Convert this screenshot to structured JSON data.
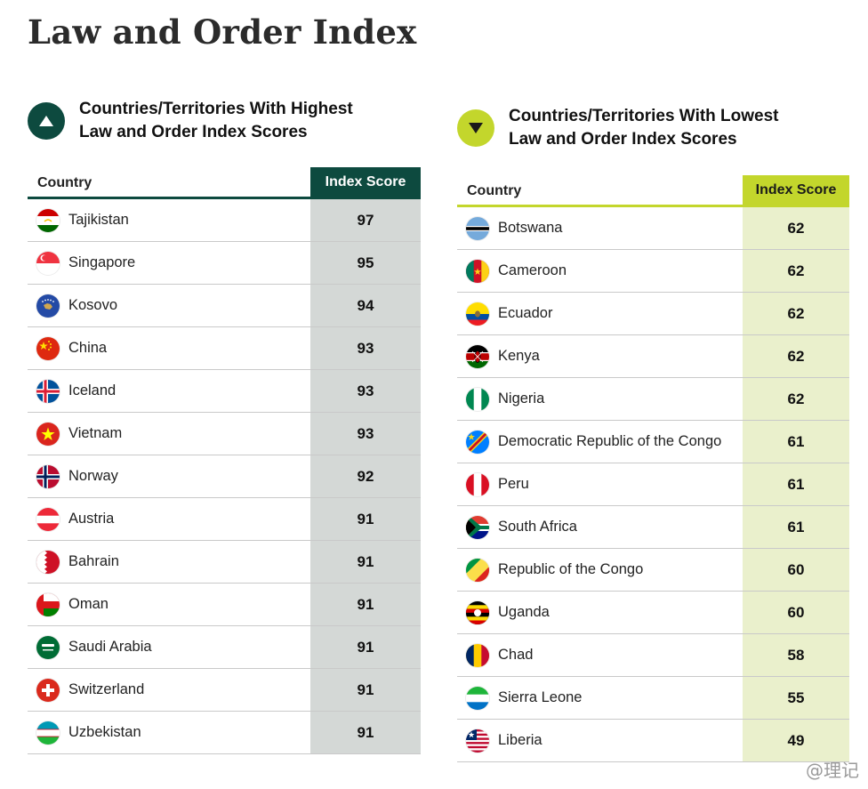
{
  "title": "Law and Order Index",
  "high": {
    "heading": "Countries/Territories With Highest\nLaw and Order Index Scores",
    "col_country": "Country",
    "col_score": "Index Score",
    "rows": [
      {
        "country": "Tajikistan",
        "score": "97",
        "flag": "tajikistan-flag"
      },
      {
        "country": "Singapore",
        "score": "95",
        "flag": "singapore-flag"
      },
      {
        "country": "Kosovo",
        "score": "94",
        "flag": "kosovo-flag"
      },
      {
        "country": "China",
        "score": "93",
        "flag": "china-flag"
      },
      {
        "country": "Iceland",
        "score": "93",
        "flag": "iceland-flag"
      },
      {
        "country": "Vietnam",
        "score": "93",
        "flag": "vietnam-flag"
      },
      {
        "country": "Norway",
        "score": "92",
        "flag": "norway-flag"
      },
      {
        "country": "Austria",
        "score": "91",
        "flag": "austria-flag"
      },
      {
        "country": "Bahrain",
        "score": "91",
        "flag": "bahrain-flag"
      },
      {
        "country": "Oman",
        "score": "91",
        "flag": "oman-flag"
      },
      {
        "country": "Saudi Arabia",
        "score": "91",
        "flag": "saudi-arabia-flag"
      },
      {
        "country": "Switzerland",
        "score": "91",
        "flag": "switzerland-flag"
      },
      {
        "country": "Uzbekistan",
        "score": "91",
        "flag": "uzbekistan-flag"
      }
    ]
  },
  "low": {
    "heading": "Countries/Territories With Lowest\nLaw and Order Index Scores",
    "col_country": "Country",
    "col_score": "Index Score",
    "rows": [
      {
        "country": "Botswana",
        "score": "62",
        "flag": "botswana-flag"
      },
      {
        "country": "Cameroon",
        "score": "62",
        "flag": "cameroon-flag"
      },
      {
        "country": "Ecuador",
        "score": "62",
        "flag": "ecuador-flag"
      },
      {
        "country": "Kenya",
        "score": "62",
        "flag": "kenya-flag"
      },
      {
        "country": "Nigeria",
        "score": "62",
        "flag": "nigeria-flag"
      },
      {
        "country": "Democratic Republic of the Congo",
        "score": "61",
        "flag": "dr-congo-flag"
      },
      {
        "country": "Peru",
        "score": "61",
        "flag": "peru-flag"
      },
      {
        "country": "South Africa",
        "score": "61",
        "flag": "south-africa-flag"
      },
      {
        "country": "Republic of the Congo",
        "score": "60",
        "flag": "congo-flag"
      },
      {
        "country": "Uganda",
        "score": "60",
        "flag": "uganda-flag"
      },
      {
        "country": "Chad",
        "score": "58",
        "flag": "chad-flag"
      },
      {
        "country": "Sierra Leone",
        "score": "55",
        "flag": "sierra-leone-flag"
      },
      {
        "country": "Liberia",
        "score": "49",
        "flag": "liberia-flag"
      }
    ]
  },
  "watermark": "@理记",
  "colors": {
    "high_accent": "#0d4a3f",
    "low_accent": "#c3d62c",
    "high_score_bg": "#d4d8d6",
    "low_score_bg": "#eaf0cc"
  },
  "icons": {
    "high_badge": "triangle-up-icon",
    "low_badge": "triangle-down-icon"
  }
}
